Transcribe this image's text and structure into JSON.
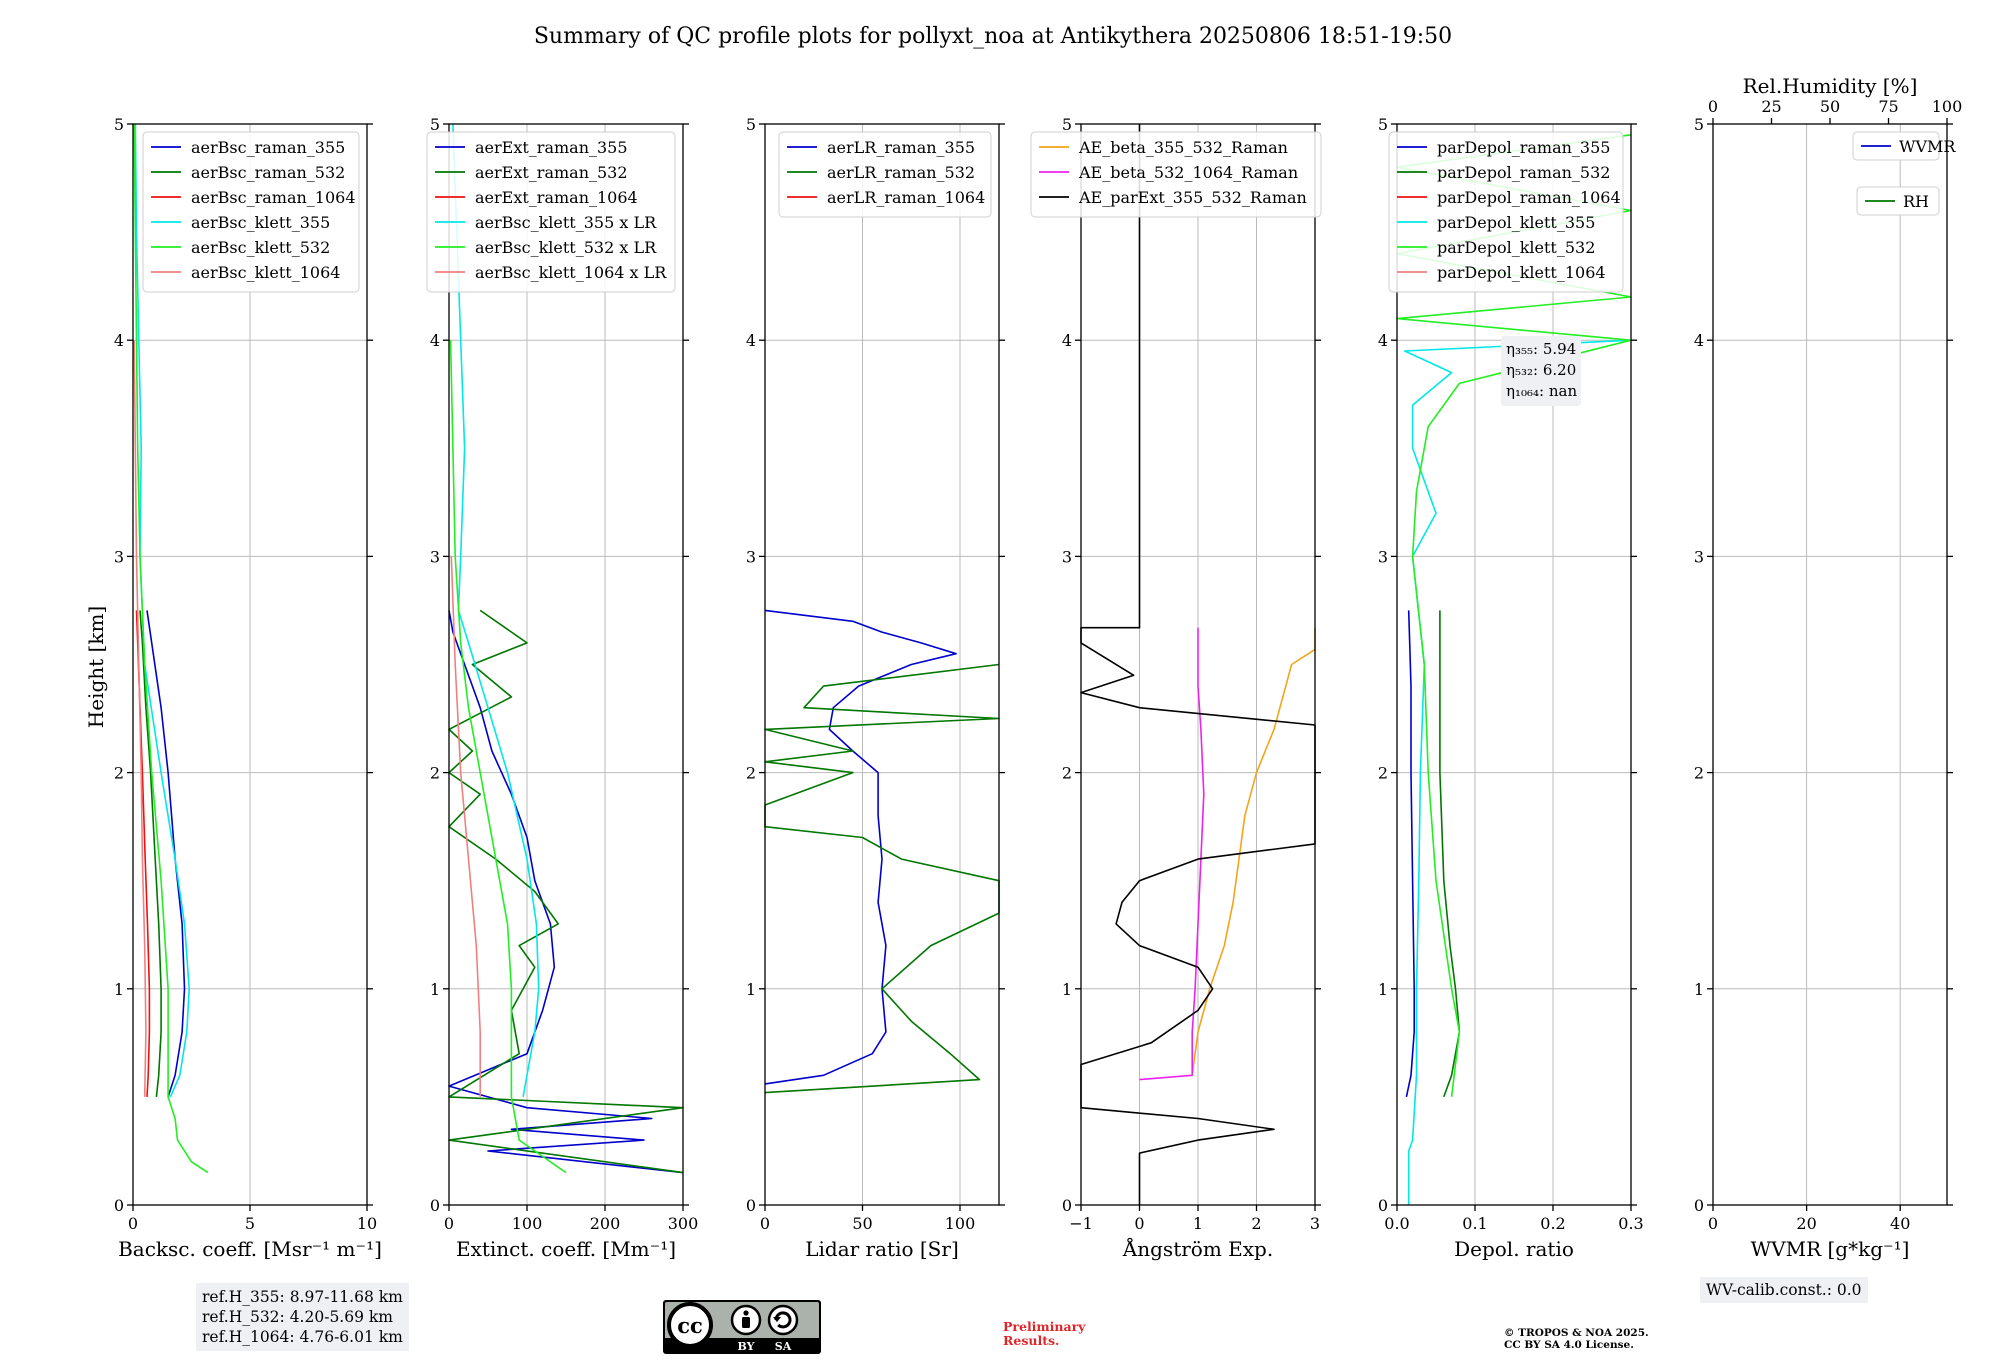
{
  "title": "Summary of QC profile plots for pollyxt_noa at Antikythera 20250806 18:51-19:50",
  "ylabel": "Height [km]",
  "ref_heights": [
    "ref.H_355: 8.97-11.68 km",
    "ref.H_532: 4.20-5.69 km",
    "ref.H_1064: 4.76-6.01 km"
  ],
  "wv_calib": "WV-calib.const.: 0.0",
  "preliminary": [
    "Preliminary",
    "Results."
  ],
  "copyright": [
    "© TROPOS & NOA 2025.",
    "CC BY SA 4.0 License."
  ],
  "license_badge": [
    "BY",
    "SA"
  ],
  "colors": {
    "raman_355": "#0000cc",
    "raman_532": "#007700",
    "raman_1064": "#ee1111",
    "klett_355": "#00e8e8",
    "klett_532": "#22ee22",
    "klett_1064": "#f08080",
    "ae_beta_355_532": "#f5a31a",
    "ae_beta_532_1064": "#ee22ee",
    "ae_parext": "#000000",
    "grid": "#bbbbbb"
  },
  "chart_data": [
    {
      "type": "line",
      "xlabel": "Backsc. coeff. [Msr⁻¹ m⁻¹]",
      "ylabel": "Height [km]",
      "xlim": [
        0,
        10
      ],
      "ylim": [
        0,
        5
      ],
      "xticks": [
        0,
        5,
        10
      ],
      "yticks": [
        0,
        1,
        2,
        3,
        4,
        5
      ],
      "legend": "upper right",
      "series": [
        {
          "name": "aerBsc_raman_355",
          "color": "raman_355",
          "y": [
            0.5,
            0.6,
            0.8,
            1.0,
            1.3,
            1.6,
            2.0,
            2.3,
            2.6,
            2.75
          ],
          "x": [
            1.5,
            1.8,
            2.1,
            2.2,
            2.1,
            1.8,
            1.5,
            1.2,
            0.8,
            0.6
          ]
        },
        {
          "name": "aerBsc_raman_532",
          "color": "raman_532",
          "y": [
            0.5,
            0.6,
            0.8,
            1.0,
            1.3,
            1.6,
            2.0,
            2.3,
            2.6,
            2.75
          ],
          "x": [
            1.0,
            1.1,
            1.2,
            1.2,
            1.1,
            0.95,
            0.75,
            0.55,
            0.4,
            0.3
          ]
        },
        {
          "name": "aerBsc_raman_1064",
          "color": "raman_1064",
          "y": [
            0.5,
            0.6,
            0.8,
            1.0,
            1.3,
            1.6,
            2.0,
            2.3,
            2.6,
            2.75
          ],
          "x": [
            0.6,
            0.65,
            0.7,
            0.7,
            0.62,
            0.52,
            0.4,
            0.3,
            0.2,
            0.15
          ]
        },
        {
          "name": "aerBsc_klett_355",
          "color": "klett_355",
          "y": [
            0.5,
            0.6,
            0.8,
            1.0,
            1.3,
            1.6,
            2.0,
            2.5,
            3.0,
            3.5,
            4.0,
            4.5,
            5.0
          ],
          "x": [
            1.6,
            2.0,
            2.3,
            2.4,
            2.2,
            1.8,
            1.2,
            0.5,
            0.3,
            0.35,
            0.25,
            0.15,
            0.1
          ]
        },
        {
          "name": "aerBsc_klett_532",
          "color": "klett_532",
          "y": [
            0.15,
            0.2,
            0.3,
            0.4,
            0.5,
            0.7,
            1.0,
            1.5,
            2.0,
            2.5,
            3.0,
            3.5,
            4.0,
            4.5,
            5.0
          ],
          "x": [
            3.2,
            2.5,
            1.9,
            1.8,
            1.5,
            1.5,
            1.5,
            1.2,
            0.8,
            0.5,
            0.3,
            0.2,
            0.15,
            0.1,
            0.05
          ]
        },
        {
          "name": "aerBsc_klett_1064",
          "color": "klett_1064",
          "y": [
            0.5,
            0.8,
            1.2,
            1.6,
            2.0,
            2.5,
            3.0,
            3.5,
            4.0
          ],
          "x": [
            0.5,
            0.55,
            0.5,
            0.4,
            0.35,
            0.25,
            0.15,
            0.1,
            0.05
          ]
        }
      ]
    },
    {
      "type": "line",
      "xlabel": "Extinct. coeff. [Mm⁻¹]",
      "ylabel": "",
      "xlim": [
        0,
        300
      ],
      "ylim": [
        0,
        5
      ],
      "xticks": [
        0,
        100,
        200,
        300
      ],
      "yticks": [
        0,
        1,
        2,
        3,
        4,
        5
      ],
      "legend": "upper right",
      "series": [
        {
          "name": "aerExt_raman_355",
          "color": "raman_355",
          "y": [
            0.15,
            0.25,
            0.3,
            0.35,
            0.4,
            0.45,
            0.55,
            0.7,
            0.9,
            1.1,
            1.3,
            1.5,
            1.7,
            1.9,
            2.1,
            2.3,
            2.5,
            2.65,
            2.75
          ],
          "x": [
            300,
            50,
            250,
            80,
            260,
            100,
            0,
            100,
            120,
            135,
            130,
            110,
            100,
            80,
            55,
            40,
            20,
            5,
            0
          ]
        },
        {
          "name": "aerExt_raman_532",
          "color": "raman_532",
          "y": [
            0.15,
            0.3,
            0.45,
            0.5,
            0.7,
            0.9,
            1.1,
            1.2,
            1.3,
            1.45,
            1.6,
            1.75,
            1.9,
            2.0,
            2.1,
            2.2,
            2.35,
            2.5,
            2.6,
            2.75
          ],
          "x": [
            300,
            0,
            300,
            0,
            90,
            80,
            110,
            90,
            140,
            110,
            60,
            0,
            40,
            0,
            30,
            0,
            80,
            30,
            100,
            40
          ]
        },
        {
          "name": "aerExt_raman_1064",
          "color": "raman_1064",
          "y": [],
          "x": []
        },
        {
          "name": "aerBsc_klett_355 x LR",
          "color": "klett_355",
          "y": [
            0.5,
            0.8,
            1.0,
            1.3,
            1.6,
            2.0,
            2.3,
            2.6,
            2.75,
            3.0,
            3.5,
            4.0,
            4.5,
            5.0
          ],
          "x": [
            95,
            110,
            115,
            112,
            100,
            75,
            50,
            25,
            12,
            15,
            20,
            15,
            10,
            5
          ]
        },
        {
          "name": "aerBsc_klett_532 x LR",
          "color": "klett_532",
          "y": [
            0.15,
            0.3,
            0.5,
            0.7,
            1.0,
            1.3,
            1.6,
            2.0,
            2.3,
            2.6,
            3.0,
            3.5,
            4.0
          ],
          "x": [
            150,
            90,
            80,
            80,
            80,
            75,
            60,
            40,
            25,
            15,
            8,
            5,
            2
          ]
        },
        {
          "name": "aerBsc_klett_1064 x LR",
          "color": "klett_1064",
          "y": [
            0.5,
            0.8,
            1.2,
            1.6,
            2.0,
            2.5,
            3.0
          ],
          "x": [
            40,
            40,
            35,
            25,
            15,
            8,
            3
          ]
        }
      ]
    },
    {
      "type": "line",
      "xlabel": "Lidar ratio [Sr]",
      "ylabel": "",
      "xlim": [
        0,
        120
      ],
      "ylim": [
        0,
        5
      ],
      "xticks": [
        0,
        50,
        100
      ],
      "yticks": [
        0,
        1,
        2,
        3,
        4,
        5
      ],
      "legend": "upper right",
      "series": [
        {
          "name": "aerLR_raman_355",
          "color": "raman_355",
          "y": [
            0.56,
            0.6,
            0.7,
            0.8,
            1.0,
            1.2,
            1.4,
            1.6,
            1.8,
            2.0,
            2.1,
            2.2,
            2.3,
            2.4,
            2.5,
            2.55,
            2.6,
            2.65,
            2.7,
            2.75
          ],
          "x": [
            0,
            30,
            55,
            62,
            60,
            62,
            58,
            60,
            58,
            58,
            45,
            33,
            35,
            48,
            75,
            98,
            80,
            60,
            45,
            0
          ]
        },
        {
          "name": "aerLR_raman_532",
          "color": "raman_532",
          "y": [
            0.52,
            0.58,
            0.7,
            0.85,
            1.0,
            1.2,
            1.35,
            1.5,
            1.6,
            1.7,
            1.75,
            1.85,
            2.0,
            2.05,
            2.1,
            2.2,
            2.25,
            2.3,
            2.4,
            2.5
          ],
          "x": [
            0,
            110,
            95,
            75,
            60,
            85,
            120,
            120,
            70,
            50,
            0,
            0,
            45,
            0,
            45,
            0,
            120,
            20,
            30,
            120
          ]
        },
        {
          "name": "aerLR_raman_1064",
          "color": "raman_1064",
          "y": [],
          "x": []
        }
      ]
    },
    {
      "type": "line",
      "xlabel": "Ångström Exp.",
      "ylabel": "",
      "xlim": [
        -1,
        3
      ],
      "ylim": [
        0,
        5
      ],
      "xticks": [
        -1,
        0,
        1,
        2,
        3
      ],
      "yticks": [
        0,
        1,
        2,
        3,
        4,
        5
      ],
      "legend": "upper left",
      "series": [
        {
          "name": "AE_beta_355_532_Raman",
          "color": "ae_beta_355_532",
          "y": [
            0.6,
            0.8,
            1.0,
            1.2,
            1.4,
            1.6,
            1.8,
            2.0,
            2.2,
            2.4,
            2.5,
            2.57,
            2.67
          ],
          "x": [
            0.9,
            1.0,
            1.2,
            1.45,
            1.6,
            1.7,
            1.8,
            2.0,
            2.3,
            2.5,
            2.6,
            3.0,
            3.0
          ]
        },
        {
          "name": "AE_beta_532_1064_Raman",
          "color": "ae_beta_532_1064",
          "y": [
            0.58,
            0.6,
            0.8,
            1.0,
            1.3,
            1.6,
            1.9,
            2.2,
            2.4,
            2.6,
            2.67
          ],
          "x": [
            0.0,
            0.9,
            0.9,
            0.95,
            1.0,
            1.05,
            1.1,
            1.05,
            1.0,
            1.0,
            1.0
          ]
        },
        {
          "name": "AE_parExt_355_532_Raman",
          "color": "ae_parext",
          "y": [
            0.0,
            0.24,
            0.3,
            0.35,
            0.4,
            0.45,
            0.65,
            0.75,
            0.9,
            1.0,
            1.1,
            1.2,
            1.3,
            1.4,
            1.5,
            1.6,
            1.67,
            2.22,
            2.3,
            2.37,
            2.45,
            2.6,
            2.67,
            2.67,
            5.0
          ],
          "x": [
            0.0,
            0.0,
            1.0,
            2.3,
            1.0,
            -1.0,
            -1.0,
            0.2,
            1.0,
            1.25,
            1.0,
            0.0,
            -0.4,
            -0.3,
            0.0,
            1.0,
            3.0,
            3.0,
            0.0,
            -1.0,
            -0.1,
            -1.0,
            -1.0,
            0.0,
            0.0
          ]
        }
      ]
    },
    {
      "type": "line",
      "xlabel": "Depol. ratio",
      "ylabel": "",
      "xlim": [
        0,
        0.3
      ],
      "ylim": [
        0,
        5
      ],
      "xticks": [
        0.0,
        0.1,
        0.2,
        0.3
      ],
      "yticks": [
        0,
        1,
        2,
        3,
        4,
        5
      ],
      "legend": "upper right",
      "annotation": [
        "η₃₅₅: 5.94",
        "η₅₃₂: 6.20",
        "η₁₀₆₄: nan"
      ],
      "series": [
        {
          "name": "parDepol_raman_355",
          "color": "raman_355",
          "y": [
            0.5,
            0.6,
            0.8,
            1.0,
            1.5,
            2.0,
            2.4,
            2.75
          ],
          "x": [
            0.012,
            0.018,
            0.022,
            0.022,
            0.02,
            0.018,
            0.018,
            0.015
          ]
        },
        {
          "name": "parDepol_raman_532",
          "color": "raman_532",
          "y": [
            0.5,
            0.6,
            0.8,
            1.0,
            1.2,
            1.5,
            2.0,
            2.4,
            2.75
          ],
          "x": [
            0.06,
            0.07,
            0.08,
            0.075,
            0.068,
            0.06,
            0.055,
            0.055,
            0.055
          ]
        },
        {
          "name": "parDepol_raman_1064",
          "color": "raman_1064",
          "y": [],
          "x": []
        },
        {
          "name": "parDepol_klett_355",
          "color": "klett_355",
          "y": [
            0.0,
            0.25,
            0.3,
            0.6,
            1.0,
            1.5,
            2.0,
            2.5,
            3.0,
            3.2,
            3.5,
            3.7,
            3.85,
            3.95,
            4.0
          ],
          "x": [
            0.015,
            0.015,
            0.02,
            0.025,
            0.025,
            0.028,
            0.03,
            0.035,
            0.02,
            0.05,
            0.02,
            0.02,
            0.07,
            0.01,
            0.3
          ]
        },
        {
          "name": "parDepol_klett_532",
          "color": "klett_532",
          "y": [
            0.5,
            0.8,
            1.0,
            1.5,
            2.0,
            2.5,
            3.0,
            3.3,
            3.6,
            3.8,
            4.0,
            4.1,
            4.2,
            4.4,
            4.6,
            4.8,
            4.95
          ],
          "x": [
            0.07,
            0.08,
            0.07,
            0.05,
            0.04,
            0.035,
            0.02,
            0.025,
            0.04,
            0.08,
            0.3,
            0.0,
            0.3,
            0.0,
            0.3,
            0.0,
            0.3
          ]
        },
        {
          "name": "parDepol_klett_1064",
          "color": "klett_1064",
          "y": [],
          "x": []
        }
      ]
    },
    {
      "type": "line",
      "xlabel": "WVMR [g*kg⁻¹]",
      "x2label": "Rel.Humidity [%]",
      "ylabel": "",
      "xlim": [
        0,
        50
      ],
      "x2lim": [
        0,
        100
      ],
      "ylim": [
        0,
        5
      ],
      "xticks": [
        0,
        20,
        40
      ],
      "x2ticks": [
        0,
        25,
        50,
        75,
        100
      ],
      "yticks": [
        0,
        1,
        2,
        3,
        4,
        5
      ],
      "legend": "upper right",
      "series": [
        {
          "name": "WVMR",
          "color": "raman_355",
          "y": [],
          "x": []
        },
        {
          "name": "RH",
          "color": "raman_532",
          "y": [],
          "x": []
        }
      ]
    }
  ]
}
